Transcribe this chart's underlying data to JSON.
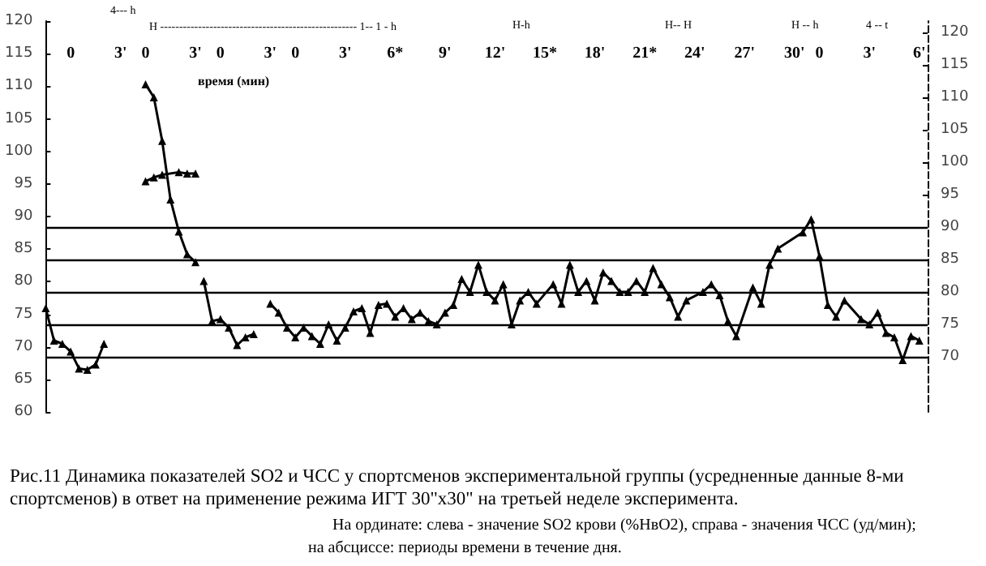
{
  "chart_data": {
    "type": "line",
    "title": "Рис.11 Динамика показателей SO2 и ЧСС у спортсменов экспериментальной группы (усредненные данные 8-ми спортсменов) в ответ на применение режима ИГТ 30\"х30\" на третьей неделе эксперимента.",
    "xlabel": "время (мин)",
    "categories": [
      null,
      null,
      null,
      "0",
      null,
      null,
      null,
      null,
      null,
      "3'",
      null,
      null,
      "0",
      null,
      null,
      null,
      null,
      null,
      "3'",
      null,
      null,
      "0",
      null,
      null,
      null,
      null,
      null,
      "3'",
      null,
      null,
      "0",
      null,
      null,
      null,
      null,
      null,
      "3'",
      null,
      null,
      null,
      null,
      null,
      "6*",
      null,
      null,
      null,
      null,
      null,
      "9'",
      null,
      null,
      null,
      null,
      null,
      "12'",
      null,
      null,
      null,
      null,
      null,
      "15*",
      null,
      null,
      null,
      null,
      null,
      "18'",
      null,
      null,
      null,
      null,
      null,
      "21*",
      null,
      null,
      null,
      null,
      null,
      "24'",
      null,
      null,
      null,
      null,
      null,
      "27'",
      null,
      null,
      null,
      null,
      null,
      "30'",
      null,
      null,
      "0",
      null,
      null,
      null,
      null,
      null,
      "3'",
      null,
      null,
      null,
      null,
      null,
      "6'",
      null
    ],
    "ylim": [
      60,
      120
    ],
    "yticks": [
      60,
      65,
      70,
      75,
      80,
      85,
      90,
      95,
      100,
      105,
      110,
      115,
      120
    ],
    "y2lim": [
      61.5,
      121.75
    ],
    "y2ticks": [
      70,
      75,
      80,
      85,
      90,
      95,
      100,
      105,
      110,
      115,
      120
    ],
    "marker": "triangle",
    "line_style": "solid",
    "ref_lines": [
      {
        "axis": "y2",
        "value": 70
      },
      {
        "axis": "y2",
        "value": 75
      },
      {
        "axis": "y2",
        "value": 80
      },
      {
        "axis": "y2",
        "value": 85
      },
      {
        "axis": "y2",
        "value": 90
      }
    ],
    "series": [
      {
        "color": "#000000",
        "axis": "y2",
        "values": [
          77.5,
          72.5,
          72,
          70.8,
          68.2,
          68,
          68.8,
          72,
          null,
          null,
          null,
          null,
          null,
          null,
          null,
          null,
          null,
          null,
          null,
          null,
          null,
          null,
          null,
          null,
          null,
          null,
          null,
          null,
          null,
          null,
          null,
          null,
          null,
          null,
          null,
          null,
          null,
          null,
          null,
          null,
          null,
          null,
          null,
          null,
          null,
          null,
          null,
          null,
          null,
          null,
          null,
          null,
          null,
          null,
          null,
          null,
          null,
          null,
          null,
          null,
          null,
          null,
          null,
          null,
          null,
          null,
          null,
          null,
          null,
          null,
          null,
          null,
          null,
          null,
          null,
          null,
          null,
          null,
          null,
          null,
          null,
          null,
          null,
          null,
          null,
          null,
          null,
          null,
          null,
          null,
          null,
          null,
          null,
          null,
          null,
          null,
          null,
          null,
          null,
          null,
          null,
          null,
          null,
          null,
          null,
          null,
          null
        ]
      },
      {
        "color": "#000000",
        "axis": "y2",
        "values": [
          null,
          null,
          null,
          null,
          null,
          null,
          null,
          null,
          null,
          null,
          null,
          null,
          null,
          null,
          null,
          null,
          null,
          null,
          null,
          81.7,
          75.5,
          75.8,
          74.5,
          71.8,
          73,
          73.5,
          null,
          null,
          null,
          null,
          null,
          null,
          null,
          null,
          null,
          null,
          null,
          null,
          null,
          null,
          null,
          null,
          null,
          null,
          null,
          null,
          null,
          null,
          null,
          null,
          null,
          null,
          null,
          null,
          null,
          null,
          null,
          null,
          null,
          null,
          null,
          null,
          null,
          null,
          null,
          null,
          null,
          null,
          null,
          null,
          null,
          null,
          null,
          null,
          null,
          null,
          null,
          null,
          null,
          null,
          null,
          null,
          null,
          null,
          null,
          null,
          null,
          null,
          null,
          null,
          null,
          null,
          null,
          null,
          null,
          null,
          null,
          null,
          null,
          null,
          null,
          null,
          null,
          null,
          null,
          null,
          null
        ]
      },
      {
        "color": "#000000",
        "axis": "y2",
        "values": [
          null,
          null,
          null,
          null,
          null,
          null,
          null,
          null,
          null,
          null,
          null,
          null,
          null,
          null,
          null,
          null,
          null,
          null,
          null,
          null,
          null,
          null,
          null,
          null,
          null,
          null,
          null,
          78.2,
          76.8,
          74.5,
          73,
          74.5,
          73.2,
          72,
          75,
          72.5,
          74.5,
          77,
          77.5,
          73.7,
          78,
          78.2,
          76.2,
          77.5,
          75.8,
          76.8,
          75.5,
          75,
          76.8,
          78,
          82,
          80,
          84.2,
          80,
          78.7,
          81.2,
          75,
          78.7,
          80,
          78.2,
          null,
          81.2,
          78.2,
          84.2,
          80,
          81.7,
          78.7,
          83,
          81.7,
          80,
          80,
          81.7,
          80,
          83.7,
          81.2,
          79.2,
          76.2,
          78.7,
          null,
          80,
          81.2,
          79.5,
          75.5,
          73.2,
          null,
          80.7,
          78.2,
          84.2,
          86.7,
          null,
          null,
          89.2,
          91.2,
          85.5,
          78,
          76.2,
          78.7,
          null,
          75.8,
          75,
          76.8,
          73.7,
          73,
          69.5,
          73.2,
          72.5,
          null
        ]
      },
      {
        "color": "#000000",
        "values": [
          null,
          null,
          null,
          null,
          null,
          null,
          null,
          null,
          null,
          null,
          null,
          null,
          110.3,
          108.3,
          101.6,
          92.6,
          87.7,
          84.2,
          83,
          null,
          null,
          null,
          null,
          null,
          null,
          null,
          null,
          null,
          null,
          null,
          null,
          null,
          null,
          null,
          null,
          null,
          null,
          null,
          null,
          null,
          null,
          null,
          null,
          null,
          null,
          null,
          null,
          null,
          null,
          null,
          null,
          null,
          null,
          null,
          null,
          null,
          null,
          null,
          null,
          null,
          null,
          null,
          null,
          null,
          null,
          null,
          null,
          null,
          null,
          null,
          null,
          null,
          null,
          null,
          null,
          null,
          null,
          null,
          null,
          null,
          null,
          null,
          null,
          null,
          null,
          null,
          null,
          null,
          null,
          null,
          null,
          null,
          null,
          null,
          null,
          null,
          null,
          null,
          null,
          null,
          null,
          null,
          null,
          null,
          null,
          null,
          null
        ]
      },
      {
        "color": "#000000",
        "values": [
          null,
          null,
          null,
          null,
          null,
          null,
          null,
          null,
          null,
          null,
          null,
          null,
          95.4,
          96,
          96.4,
          null,
          96.8,
          96.6,
          96.6,
          null,
          null,
          null,
          null,
          null,
          null,
          null,
          null,
          null,
          null,
          null,
          null,
          null,
          null,
          null,
          null,
          null,
          null,
          null,
          null,
          null,
          null,
          null,
          null,
          null,
          null,
          null,
          null,
          null,
          null,
          null,
          null,
          null,
          null,
          null,
          null,
          null,
          null,
          null,
          null,
          null,
          null,
          null,
          null,
          null,
          null,
          null,
          null,
          null,
          null,
          null,
          null,
          null,
          null,
          null,
          null,
          null,
          null,
          null,
          null,
          null,
          null,
          null,
          null,
          null,
          null,
          null,
          null,
          null,
          null,
          null,
          null,
          null,
          null,
          null,
          null,
          null,
          null,
          null,
          null,
          null,
          null,
          null,
          null,
          null,
          null,
          null,
          null
        ]
      }
    ],
    "annotations": [
      "4--- h",
      "H ---------------------------------------------------- 1-- 1 - h",
      "H-h",
      "H-- H",
      "H -- h",
      "4 -- t",
      "На ординате: слева - значение SO2 крови (%HвO2), справа - значения ЧСС (уд/мин);",
      "на абсциссе: периоды времени в течение дня."
    ]
  }
}
